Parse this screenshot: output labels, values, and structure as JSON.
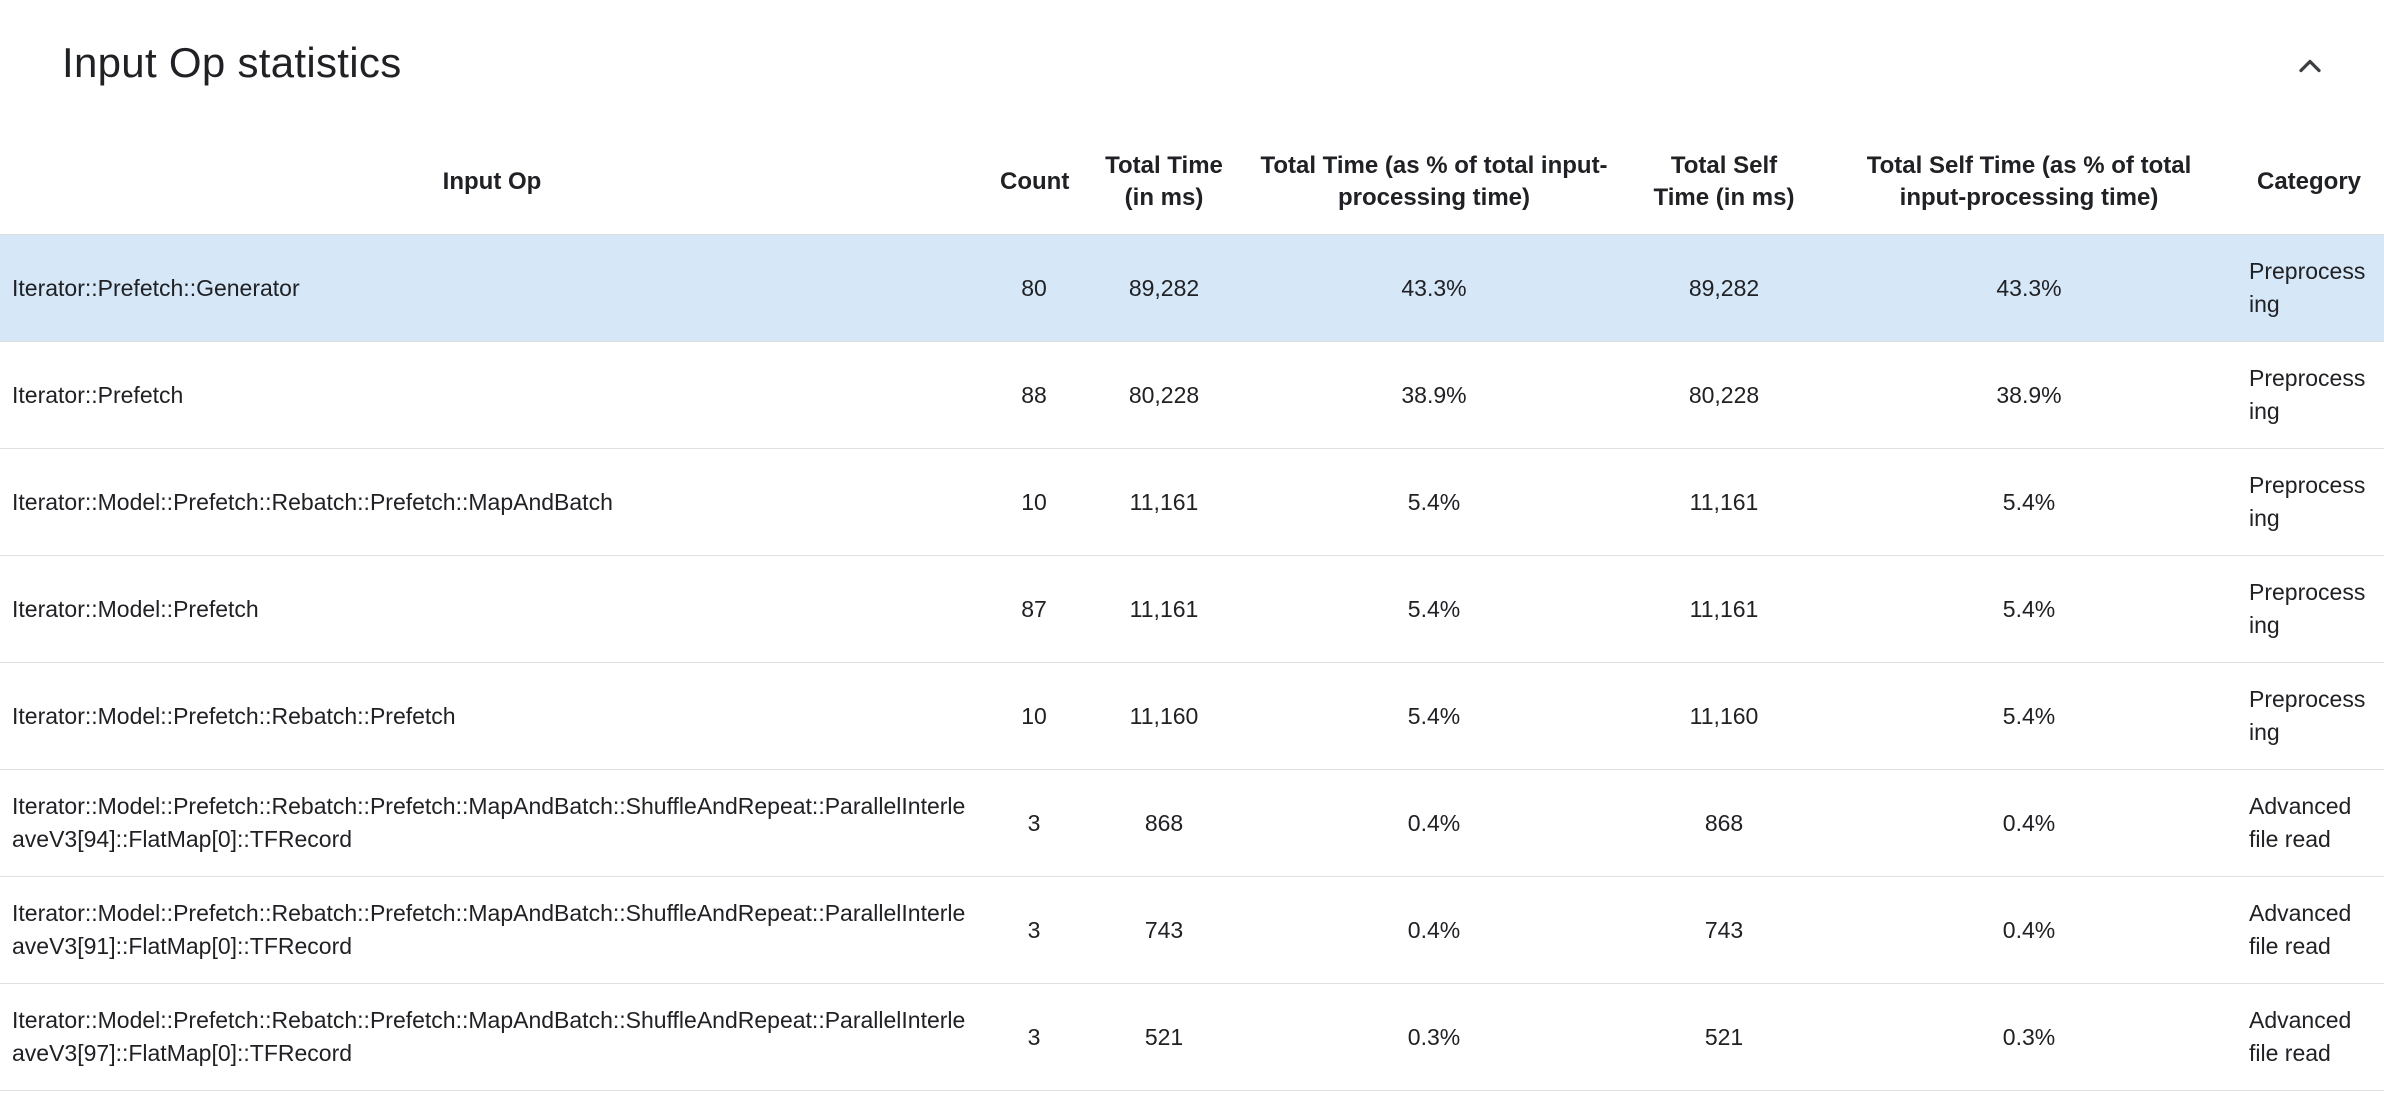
{
  "colors": {
    "highlight_row": "#d6e7f8",
    "border": "#e0e0e0",
    "text": "#202124",
    "icon": "#3c4043"
  },
  "panel": {
    "title": "Input Op statistics",
    "collapse_icon": "chevron-up-icon"
  },
  "table": {
    "columns": [
      {
        "name": "input-op",
        "label": "Input Op",
        "cell_align": "left"
      },
      {
        "name": "count",
        "label": "Count",
        "cell_align": "center"
      },
      {
        "name": "total-time",
        "label": "Total Time (in ms)",
        "cell_align": "center"
      },
      {
        "name": "total-time-pct",
        "label": "Total Time (as % of total input-processing time)",
        "cell_align": "center"
      },
      {
        "name": "total-self-time",
        "label": "Total Self Time (in ms)",
        "cell_align": "center"
      },
      {
        "name": "total-self-time-pct",
        "label": "Total Self Time (as % of total input-processing time)",
        "cell_align": "center"
      },
      {
        "name": "category",
        "label": "Category",
        "cell_align": "left"
      }
    ],
    "rows": [
      {
        "highlighted": true,
        "cells": [
          "Iterator::Prefetch::Generator",
          "80",
          "89,282",
          "43.3%",
          "89,282",
          "43.3%",
          "Preprocessing"
        ]
      },
      {
        "highlighted": false,
        "cells": [
          "Iterator::Prefetch",
          "88",
          "80,228",
          "38.9%",
          "80,228",
          "38.9%",
          "Preprocessing"
        ]
      },
      {
        "highlighted": false,
        "cells": [
          "Iterator::Model::Prefetch::Rebatch::Prefetch::MapAndBatch",
          "10",
          "11,161",
          "5.4%",
          "11,161",
          "5.4%",
          "Preprocessing"
        ]
      },
      {
        "highlighted": false,
        "cells": [
          "Iterator::Model::Prefetch",
          "87",
          "11,161",
          "5.4%",
          "11,161",
          "5.4%",
          "Preprocessing"
        ]
      },
      {
        "highlighted": false,
        "cells": [
          "Iterator::Model::Prefetch::Rebatch::Prefetch",
          "10",
          "11,160",
          "5.4%",
          "11,160",
          "5.4%",
          "Preprocessing"
        ]
      },
      {
        "highlighted": false,
        "cells": [
          "Iterator::Model::Prefetch::Rebatch::Prefetch::MapAndBatch::ShuffleAndRepeat::ParallelInterleaveV3[94]::FlatMap[0]::TFRecord",
          "3",
          "868",
          "0.4%",
          "868",
          "0.4%",
          "Advanced file read"
        ]
      },
      {
        "highlighted": false,
        "cells": [
          "Iterator::Model::Prefetch::Rebatch::Prefetch::MapAndBatch::ShuffleAndRepeat::ParallelInterleaveV3[91]::FlatMap[0]::TFRecord",
          "3",
          "743",
          "0.4%",
          "743",
          "0.4%",
          "Advanced file read"
        ]
      },
      {
        "highlighted": false,
        "cells": [
          "Iterator::Model::Prefetch::Rebatch::Prefetch::MapAndBatch::ShuffleAndRepeat::ParallelInterleaveV3[97]::FlatMap[0]::TFRecord",
          "3",
          "521",
          "0.3%",
          "521",
          "0.3%",
          "Advanced file read"
        ]
      }
    ]
  }
}
